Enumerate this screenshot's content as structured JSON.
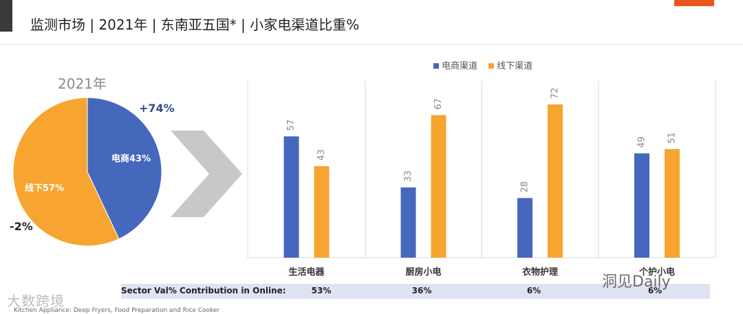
{
  "title": "监测市场 | 2021年 | 东南亚五国* | 小家电渠道比重%",
  "colors": {
    "online": "#4568bd",
    "offline": "#f7a530",
    "band": "#dde3f2",
    "accent": "#e8561c",
    "chevron": "#c8c8c8"
  },
  "pie": {
    "year": "2021年",
    "online_growth": "+74%",
    "offline_growth": "-2%",
    "slices": [
      {
        "name": "电商",
        "label": "电商43%",
        "value": 43
      },
      {
        "name": "线下",
        "label": "线下57%",
        "value": 57
      }
    ]
  },
  "chart_data": {
    "type": "bar",
    "categories": [
      "生活电器",
      "厨房小电",
      "衣物护理",
      "个护小电"
    ],
    "series": [
      {
        "name": "电商渠道",
        "values": [
          57,
          33,
          28,
          49
        ]
      },
      {
        "name": "线下渠道",
        "values": [
          43,
          67,
          72,
          51
        ]
      }
    ],
    "ylim": [
      0,
      80
    ],
    "legend_position": "top",
    "grid": false
  },
  "contribution": {
    "label": "Sector Val% Contribution in Online:",
    "values": [
      "53%",
      "36%",
      "6%",
      "6%"
    ]
  },
  "footnote": "Kitchen Appliance: Deep Fryers, Food Preparation and Rice Cooker",
  "watermark_left": "大数跨境",
  "watermark_right": "洞见Daily"
}
